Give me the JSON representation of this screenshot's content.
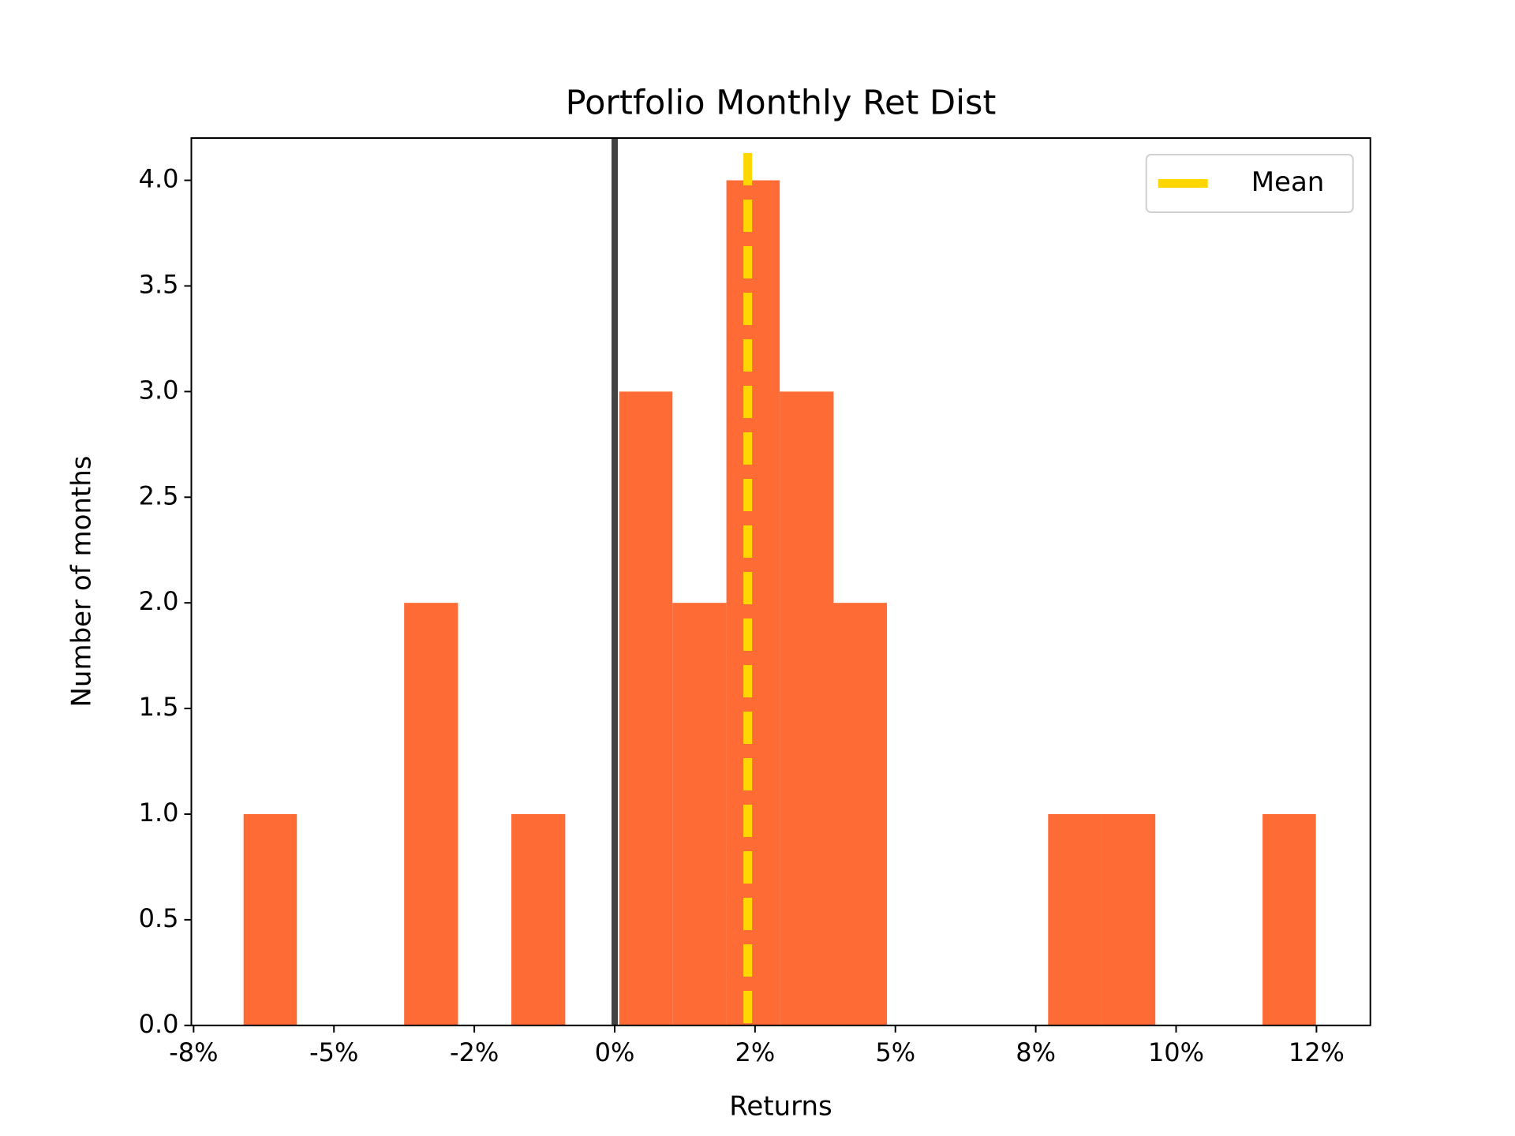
{
  "chart_data": {
    "type": "histogram",
    "title": "Portfolio Monthly Ret Dist",
    "xlabel": "Returns",
    "ylabel": "Number of months",
    "bins": [
      -6.61,
      -5.66,
      -4.7,
      -3.75,
      -2.79,
      -1.84,
      -0.88,
      0.08,
      1.03,
      1.99,
      2.94,
      3.9,
      4.85,
      5.81,
      6.76,
      7.72,
      8.67,
      9.63,
      10.58,
      11.54,
      12.49
    ],
    "counts": [
      1,
      0,
      0,
      2,
      0,
      1,
      0,
      3,
      2,
      4,
      3,
      2,
      0,
      0,
      0,
      1,
      1,
      0,
      0,
      1
    ],
    "color": "#fe6b35",
    "xlim": [
      -7.54,
      13.46
    ],
    "ylim": [
      0,
      4.2
    ],
    "xticks": [
      {
        "value": -7.5,
        "label": "-8%"
      },
      {
        "value": -5,
        "label": "-5%"
      },
      {
        "value": -2.5,
        "label": "-2%"
      },
      {
        "value": 0,
        "label": "0%"
      },
      {
        "value": 2.5,
        "label": "2%"
      },
      {
        "value": 5,
        "label": "5%"
      },
      {
        "value": 7.5,
        "label": "8%"
      },
      {
        "value": 10,
        "label": "10%"
      },
      {
        "value": 12.5,
        "label": "12%"
      }
    ],
    "yticks": [
      {
        "value": 0,
        "label": "0.0"
      },
      0.5,
      {
        "value": 1,
        "label": "1.0"
      },
      1.5,
      {
        "value": 2,
        "label": "2.0"
      },
      2.5,
      {
        "value": 3,
        "label": "3.0"
      },
      3.5,
      {
        "value": 4,
        "label": "4.0"
      }
    ],
    "zero_line": {
      "value": 0,
      "color": "#444444"
    },
    "lines": [
      {
        "name": "Mean",
        "value": 2.37,
        "color": "#ffd700",
        "style": "dashed"
      }
    ],
    "legend": "upper right"
  }
}
